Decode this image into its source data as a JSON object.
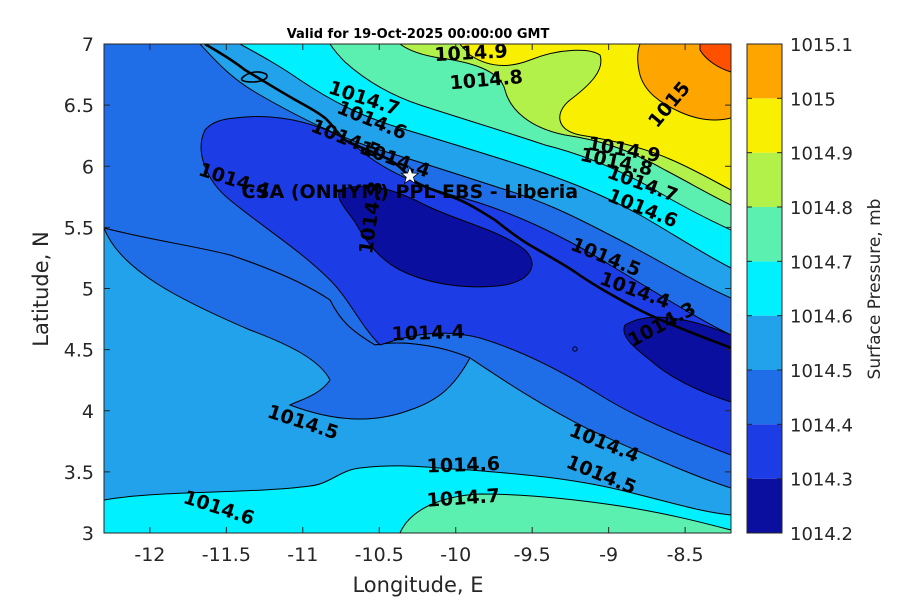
{
  "chart_data": {
    "type": "heatmap",
    "title": "Valid for 19-Oct-2025 00:00:00 GMT",
    "xlabel": "Longitude, E",
    "ylabel": "Latitude, N",
    "xlim": [
      -12.3,
      -8.2
    ],
    "ylim": [
      3,
      7
    ],
    "xticks": [
      -12,
      -11.5,
      -11,
      -10.5,
      -10,
      -9.5,
      -9,
      -8.5
    ],
    "yticks": [
      3,
      3.5,
      4,
      4.5,
      5,
      5.5,
      6,
      6.5,
      7
    ],
    "colorbar": {
      "label": "Surface Pressure, mb",
      "levels": [
        1014.2,
        1014.3,
        1014.4,
        1014.5,
        1014.6,
        1014.7,
        1014.8,
        1014.9,
        1015,
        1015.1
      ],
      "colors": [
        "#0a0fa0",
        "#1c3ce6",
        "#1f6ee8",
        "#22a2ea",
        "#00f0ff",
        "#5cf0b0",
        "#b2f04a",
        "#f8f000",
        "#ffa500",
        "#ff5000"
      ]
    },
    "station": {
      "name": "CSA (ONHYM) PPL EBS  - Liberia",
      "lon": -10.3,
      "lat": 5.92
    },
    "contour_labels": [
      {
        "text": "1014.9",
        "lon": -9.9,
        "lat": 6.92,
        "angle": -3
      },
      {
        "text": "1014.8",
        "lon": -9.8,
        "lat": 6.7,
        "angle": -5
      },
      {
        "text": "1014.7",
        "lon": -10.6,
        "lat": 6.55,
        "angle": 18
      },
      {
        "text": "1014.6",
        "lon": -10.55,
        "lat": 6.37,
        "angle": 22
      },
      {
        "text": "1014.5",
        "lon": -10.72,
        "lat": 6.22,
        "angle": 22
      },
      {
        "text": "1014.4",
        "lon": -10.4,
        "lat": 6.05,
        "angle": 20
      },
      {
        "text": "1014.4",
        "lon": -11.45,
        "lat": 5.88,
        "angle": 18
      },
      {
        "text": "1014.3",
        "lon": -10.55,
        "lat": 5.58,
        "angle": -82
      },
      {
        "text": "1015",
        "lon": -8.6,
        "lat": 6.5,
        "angle": -50
      },
      {
        "text": "1014.9",
        "lon": -8.9,
        "lat": 6.13,
        "angle": 10
      },
      {
        "text": "1014.8",
        "lon": -8.95,
        "lat": 6.03,
        "angle": 12
      },
      {
        "text": "1014.7",
        "lon": -8.78,
        "lat": 5.85,
        "angle": 20
      },
      {
        "text": "1014.6",
        "lon": -8.78,
        "lat": 5.65,
        "angle": 22
      },
      {
        "text": "1014.5",
        "lon": -9.02,
        "lat": 5.25,
        "angle": 22
      },
      {
        "text": "1014.4",
        "lon": -8.83,
        "lat": 4.98,
        "angle": 20
      },
      {
        "text": "1014.3",
        "lon": -8.65,
        "lat": 4.7,
        "angle": -28
      },
      {
        "text": "1014.4",
        "lon": -10.18,
        "lat": 4.63,
        "angle": -2
      },
      {
        "text": "1014.5",
        "lon": -11.0,
        "lat": 3.9,
        "angle": 18
      },
      {
        "text": "1014.4",
        "lon": -9.03,
        "lat": 3.73,
        "angle": 22
      },
      {
        "text": "1014.5",
        "lon": -9.05,
        "lat": 3.47,
        "angle": 22
      },
      {
        "text": "1014.6",
        "lon": -9.95,
        "lat": 3.55,
        "angle": -2
      },
      {
        "text": "1014.7",
        "lon": -9.95,
        "lat": 3.28,
        "angle": -4
      },
      {
        "text": "1014.6",
        "lon": -11.55,
        "lat": 3.2,
        "angle": 18
      }
    ]
  }
}
